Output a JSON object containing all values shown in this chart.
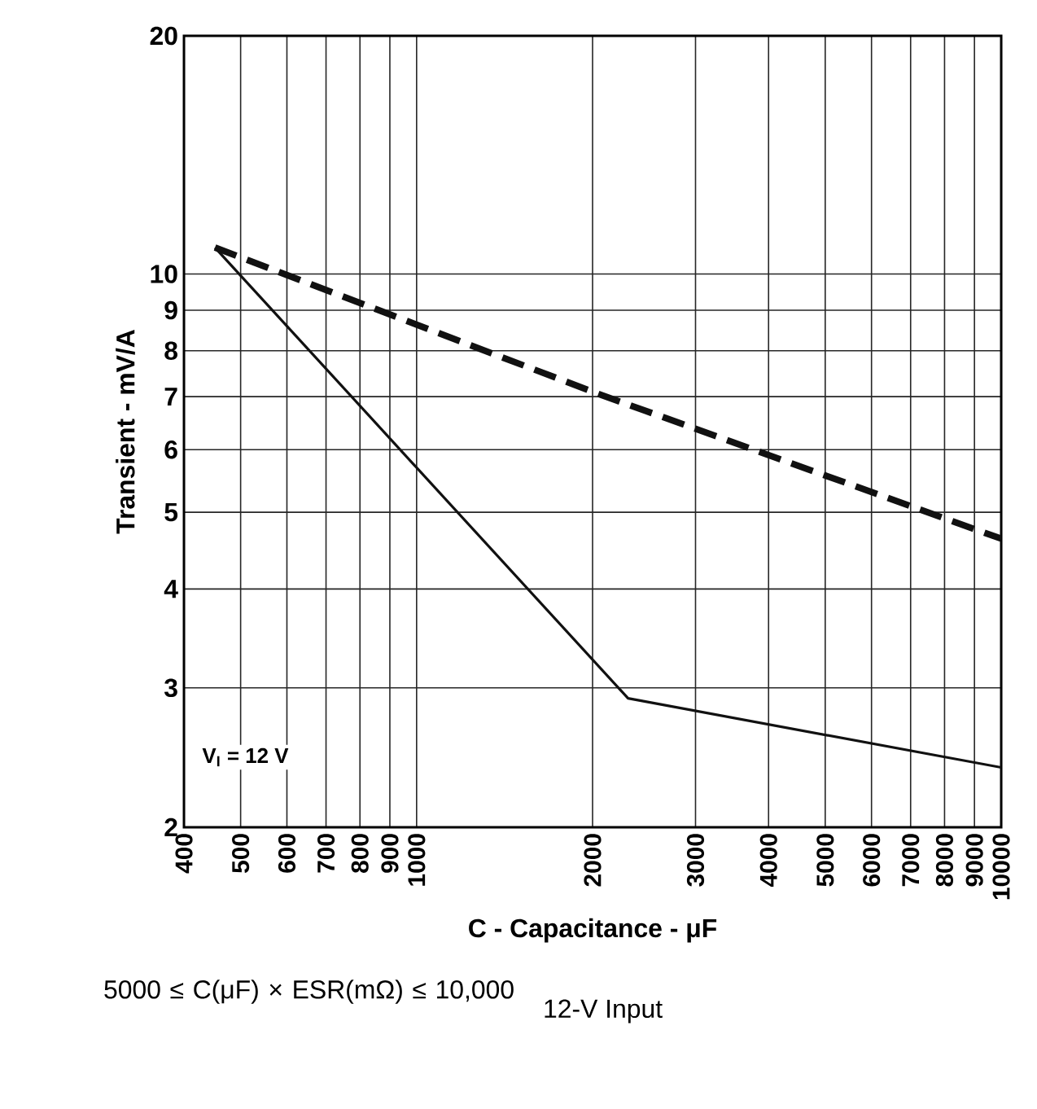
{
  "chart_data": {
    "type": "line",
    "xlabel": "C - Capacitance - μF",
    "ylabel": "Transient - mV/A",
    "log": "xy",
    "grid": true,
    "marker": "none",
    "xlim": [
      400,
      10000
    ],
    "ylim": [
      2,
      20
    ],
    "xticks": [
      400,
      500,
      600,
      700,
      800,
      900,
      1000,
      2000,
      3000,
      4000,
      5000,
      6000,
      7000,
      8000,
      9000,
      10000
    ],
    "yticks": [
      2,
      3,
      4,
      5,
      6,
      7,
      8,
      9,
      10,
      20
    ],
    "series": [
      {
        "color": "#111111",
        "line_style": "dashed",
        "x": [
          452,
          2000,
          10000
        ],
        "values": [
          10.8,
          7.1,
          4.63
        ]
      },
      {
        "color": "#111111",
        "line_style": "solid",
        "x": [
          452,
          2300,
          10000
        ],
        "values": [
          10.8,
          2.91,
          2.38
        ]
      }
    ],
    "annotations": [
      "V$_{I}$ = 12 V",
      "5000 ≤ C(μF) × ESR(mΩ) ≤ 10,000",
      "12-V Input"
    ]
  }
}
